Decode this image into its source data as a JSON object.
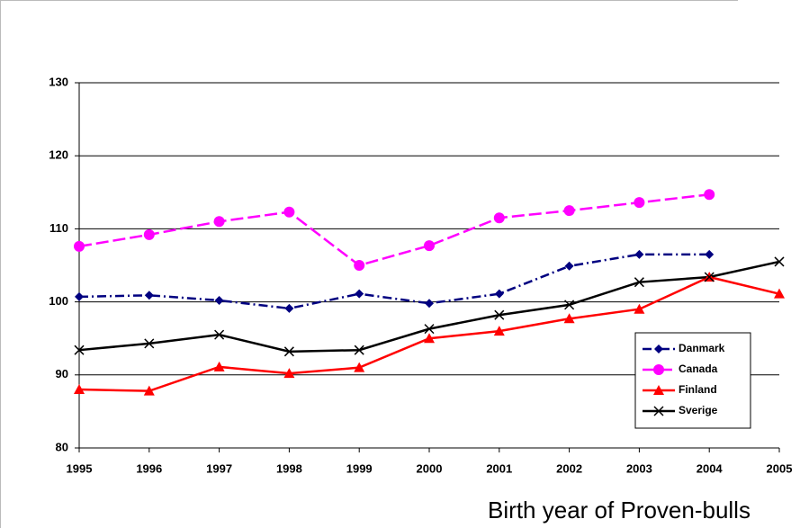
{
  "chart_data": {
    "type": "line",
    "x_label": "Birth year of Proven-bulls",
    "categories": [
      "1995",
      "1996",
      "1997",
      "1998",
      "1999",
      "2000",
      "2001",
      "2002",
      "2003",
      "2004",
      "2005"
    ],
    "ylim": [
      80,
      130
    ],
    "yticks": [
      80,
      90,
      100,
      110,
      120,
      130
    ],
    "grid": true,
    "legend": "lower-right",
    "series": [
      {
        "name": "Danmark",
        "color": "#000080",
        "dash": "dashdot",
        "marker": "diamond",
        "values": [
          100.7,
          100.9,
          100.2,
          99.1,
          101.1,
          99.8,
          101.1,
          104.9,
          106.5,
          106.5,
          null
        ]
      },
      {
        "name": "Canada",
        "color": "#ff00ff",
        "dash": "dashed",
        "marker": "circle",
        "values": [
          107.6,
          109.2,
          111.0,
          112.3,
          105.0,
          107.7,
          111.5,
          112.5,
          113.6,
          114.7,
          null
        ]
      },
      {
        "name": "Finland",
        "color": "#ff0000",
        "dash": "solid",
        "marker": "triangle",
        "values": [
          88.0,
          87.8,
          91.1,
          90.2,
          91.0,
          95.0,
          96.0,
          97.7,
          99.0,
          103.4,
          101.1
        ]
      },
      {
        "name": "Sverige",
        "color": "#000000",
        "dash": "solid",
        "marker": "x",
        "values": [
          93.4,
          94.3,
          95.5,
          93.2,
          93.4,
          96.3,
          98.2,
          99.6,
          102.7,
          103.4,
          105.5
        ]
      }
    ]
  }
}
